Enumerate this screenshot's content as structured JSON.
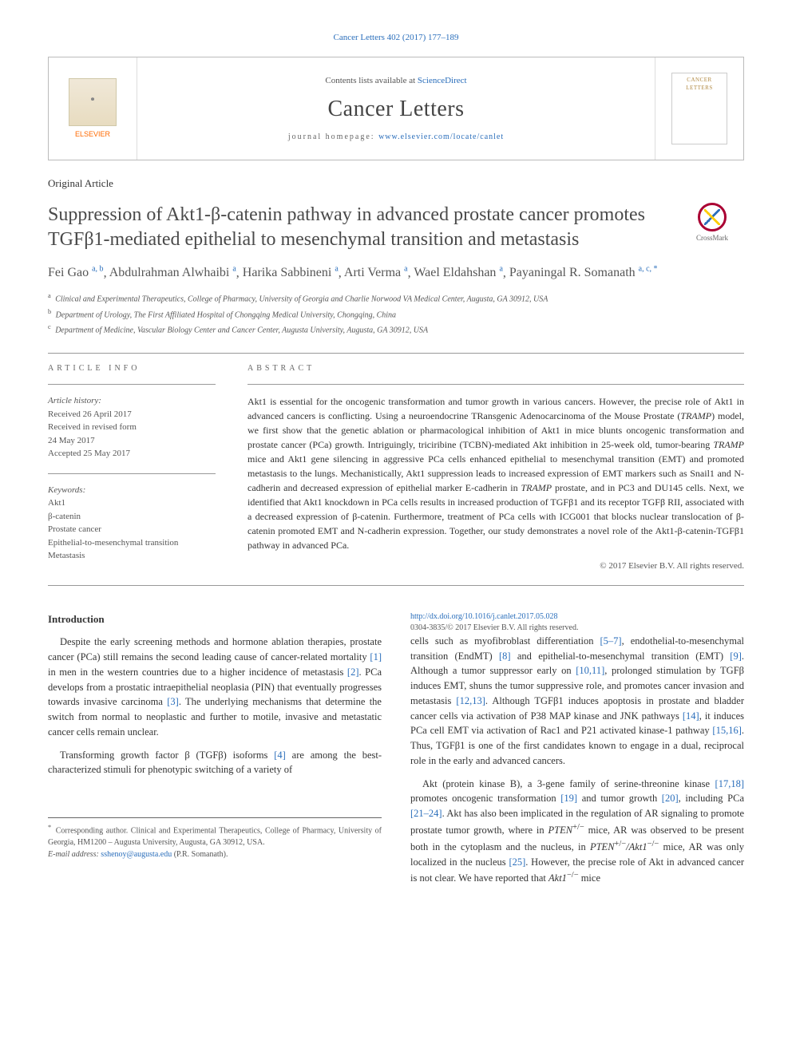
{
  "citation_header": "Cancer Letters 402 (2017) 177–189",
  "header": {
    "contents_line_pre": "Contents lists available at ",
    "contents_line_link": "ScienceDirect",
    "journal_name": "Cancer Letters",
    "homepage_label": "journal homepage: ",
    "homepage_url": "www.elsevier.com/locate/canlet",
    "elsevier_label": "ELSEVIER",
    "cover_text": "CANCER LETTERS"
  },
  "article_type": "Original Article",
  "title": "Suppression of Akt1-β-catenin pathway in advanced prostate cancer promotes TGFβ1-mediated epithelial to mesenchymal transition and metastasis",
  "crossmark_label": "CrossMark",
  "authors": [
    {
      "name": "Fei Gao",
      "sup": "a, b"
    },
    {
      "name": "Abdulrahman Alwhaibi",
      "sup": "a"
    },
    {
      "name": "Harika Sabbineni",
      "sup": "a"
    },
    {
      "name": "Arti Verma",
      "sup": "a"
    },
    {
      "name": "Wael Eldahshan",
      "sup": "a"
    },
    {
      "name": "Payaningal R. Somanath",
      "sup": "a, c, *"
    }
  ],
  "affiliations": [
    {
      "sup": "a",
      "text": "Clinical and Experimental Therapeutics, College of Pharmacy, University of Georgia and Charlie Norwood VA Medical Center, Augusta, GA 30912, USA"
    },
    {
      "sup": "b",
      "text": "Department of Urology, The First Affiliated Hospital of Chongqing Medical University, Chongqing, China"
    },
    {
      "sup": "c",
      "text": "Department of Medicine, Vascular Biology Center and Cancer Center, Augusta University, Augusta, GA 30912, USA"
    }
  ],
  "article_info": {
    "label": "ARTICLE INFO",
    "history_label": "Article history:",
    "history": [
      "Received 26 April 2017",
      "Received in revised form",
      "24 May 2017",
      "Accepted 25 May 2017"
    ],
    "keywords_label": "Keywords:",
    "keywords": [
      "Akt1",
      "β-catenin",
      "Prostate cancer",
      "Epithelial-to-mesenchymal transition",
      "Metastasis"
    ]
  },
  "abstract": {
    "label": "ABSTRACT",
    "text": "Akt1 is essential for the oncogenic transformation and tumor growth in various cancers. However, the precise role of Akt1 in advanced cancers is conflicting. Using a neuroendocrine TRansgenic Adenocarcinoma of the Mouse Prostate (TRAMP) model, we first show that the genetic ablation or pharmacological inhibition of Akt1 in mice blunts oncogenic transformation and prostate cancer (PCa) growth. Intriguingly, triciribine (TCBN)-mediated Akt inhibition in 25-week old, tumor-bearing TRAMP mice and Akt1 gene silencing in aggressive PCa cells enhanced epithelial to mesenchymal transition (EMT) and promoted metastasis to the lungs. Mechanistically, Akt1 suppression leads to increased expression of EMT markers such as Snail1 and N-cadherin and decreased expression of epithelial marker E-cadherin in TRAMP prostate, and in PC3 and DU145 cells. Next, we identified that Akt1 knockdown in PCa cells results in increased production of TGFβ1 and its receptor TGFβ RII, associated with a decreased expression of β-catenin. Furthermore, treatment of PCa cells with ICG001 that blocks nuclear translocation of β-catenin promoted EMT and N-cadherin expression. Together, our study demonstrates a novel role of the Akt1-β-catenin-TGFβ1 pathway in advanced PCa.",
    "copyright": "© 2017 Elsevier B.V. All rights reserved."
  },
  "intro": {
    "heading": "Introduction",
    "p1_pre": "Despite the early screening methods and hormone ablation therapies, prostate cancer (PCa) still remains the second leading cause of cancer-related mortality ",
    "p1_c1": "[1]",
    "p1_mid1": " in men in the western countries due to a higher incidence of metastasis ",
    "p1_c2": "[2]",
    "p1_mid2": ". PCa develops from a prostatic intraepithelial neoplasia (PIN) that eventually progresses towards invasive carcinoma ",
    "p1_c3": "[3]",
    "p1_post": ". The underlying mechanisms that determine the switch from normal to neoplastic and further to motile, invasive and metastatic cancer cells remain unclear.",
    "p2_pre": "Transforming growth factor β (TGFβ) isoforms ",
    "p2_c4": "[4]",
    "p2_post": " are among the best-characterized stimuli for phenotypic switching of a variety of",
    "p3_pre": "cells such as myofibroblast differentiation ",
    "p3_c5_7": "[5–7]",
    "p3_mid1": ", endothelial-to-mesenchymal transition (EndMT) ",
    "p3_c8": "[8]",
    "p3_mid2": " and epithelial-to-mesenchymal transition (EMT) ",
    "p3_c9": "[9]",
    "p3_mid3": ". Although a tumor suppressor early on ",
    "p3_c10_11": "[10,11]",
    "p3_mid4": ", prolonged stimulation by TGFβ induces EMT, shuns the tumor suppressive role, and promotes cancer invasion and metastasis ",
    "p3_c12_13": "[12,13]",
    "p3_mid5": ". Although TGFβ1 induces apoptosis in prostate and bladder cancer cells via activation of P38 MAP kinase and JNK pathways ",
    "p3_c14": "[14]",
    "p3_mid6": ", it induces PCa cell EMT via activation of Rac1 and P21 activated kinase-1 pathway ",
    "p3_c15_16": "[15,16]",
    "p3_post": ". Thus, TGFβ1 is one of the first candidates known to engage in a dual, reciprocal role in the early and advanced cancers.",
    "p4_pre": "Akt (protein kinase B), a 3-gene family of serine-threonine kinase ",
    "p4_c17_18": "[17,18]",
    "p4_mid1": " promotes oncogenic transformation ",
    "p4_c19": "[19]",
    "p4_mid2": " and tumor growth ",
    "p4_c20": "[20]",
    "p4_mid3": ", including PCa ",
    "p4_c21_24": "[21–24]",
    "p4_mid4": ". Akt has also been implicated in the regulation of AR signaling to promote prostate tumor growth, where in ",
    "p4_pten1": "PTEN",
    "p4_sup1": "+/−",
    "p4_mid5": " mice, AR was observed to be present both in the cytoplasm and the nucleus, in ",
    "p4_pten2": "PTEN",
    "p4_sup2": "+/−",
    "p4_slash": "/",
    "p4_akt1a": "Akt1",
    "p4_sup3": "−/−",
    "p4_mid6": " mice, AR was only localized in the nucleus ",
    "p4_c25": "[25]",
    "p4_mid7": ". However, the precise role of Akt in advanced cancer is not clear. We have reported that ",
    "p4_akt1b": "Akt1",
    "p4_sup4": "−/−",
    "p4_post": " mice"
  },
  "footnote": {
    "corresponding": "Corresponding author. Clinical and Experimental Therapeutics, College of Pharmacy, University of Georgia, HM1200 – Augusta University, Augusta, GA 30912, USA.",
    "email_label": "E-mail address:",
    "email": "sshenoy@augusta.edu",
    "email_attribution": "(P.R. Somanath)."
  },
  "doi": {
    "url": "http://dx.doi.org/10.1016/j.canlet.2017.05.028",
    "issn_line": "0304-3835/© 2017 Elsevier B.V. All rights reserved."
  }
}
